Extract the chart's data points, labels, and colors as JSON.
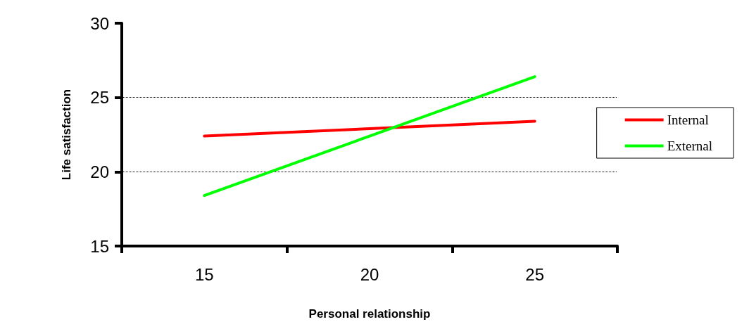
{
  "chart_data": {
    "type": "line",
    "xlabel": "Personal relationship",
    "ylabel": "Life satisfaction",
    "categories": [
      "15",
      "20",
      "25"
    ],
    "series": [
      {
        "name": "Internal",
        "color": "#ff0000",
        "values": [
          22.4,
          22.9,
          23.4
        ]
      },
      {
        "name": "External",
        "color": "#00ff00",
        "values": [
          18.4,
          22.4,
          26.4
        ]
      }
    ],
    "ylim": [
      15,
      30
    ],
    "yticks": [
      15,
      20,
      25,
      30
    ],
    "grid": "y",
    "legend": "right",
    "marker": "none",
    "line_style": "solid"
  }
}
